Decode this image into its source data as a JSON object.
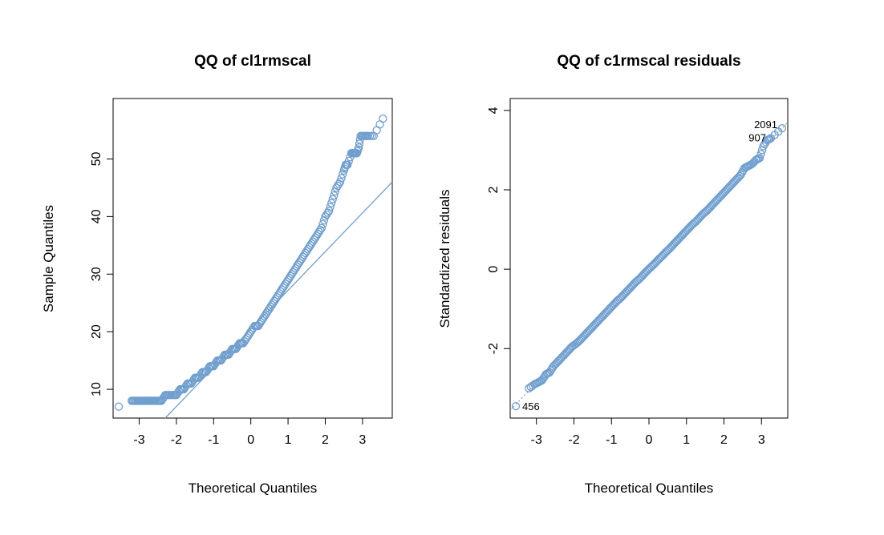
{
  "colors": {
    "points": "#6f9fcf",
    "line": "#6f9fcf",
    "axis": "#000000"
  },
  "chart_data": [
    {
      "type": "scatter",
      "title": "QQ of cl1rmscal",
      "xlabel": "Theoretical Quantiles",
      "ylabel": "Sample Quantiles",
      "xlim": [
        -3.7,
        3.8
      ],
      "ylim": [
        5,
        60.5
      ],
      "x_ticks": [
        -3,
        -2,
        -1,
        0,
        1,
        2,
        3
      ],
      "y_ticks": [
        10,
        20,
        30,
        40,
        50
      ],
      "x_tick_labels": [
        "-3",
        "-2",
        "-1",
        "0",
        "1",
        "2",
        "3"
      ],
      "y_tick_labels": [
        "10",
        "20",
        "30",
        "40",
        "50"
      ],
      "marker": "open-circle",
      "reference_line": {
        "x": [
          -2.3,
          3.8
        ],
        "y": [
          5,
          46
        ]
      },
      "points": {
        "x": [
          -3.55,
          -3.2,
          -3.1,
          -3.0,
          -2.9,
          -2.8,
          -2.7,
          -2.6,
          -2.5,
          -2.4,
          -2.3,
          -2.2,
          -2.1,
          -2.0,
          -1.9,
          -1.8,
          -1.7,
          -1.6,
          -1.5,
          -1.4,
          -1.3,
          -1.2,
          -1.1,
          -1.0,
          -0.9,
          -0.8,
          -0.7,
          -0.6,
          -0.5,
          -0.4,
          -0.3,
          -0.2,
          -0.1,
          0.0,
          0.1,
          0.2,
          0.3,
          0.4,
          0.5,
          0.6,
          0.7,
          0.8,
          0.9,
          1.0,
          1.1,
          1.2,
          1.3,
          1.4,
          1.5,
          1.6,
          1.7,
          1.8,
          1.9,
          2.0,
          2.1,
          2.2,
          2.3,
          2.4,
          2.5,
          2.55,
          2.6,
          2.7,
          2.75,
          2.8,
          2.85,
          2.9,
          2.95,
          3.05,
          3.15,
          3.3,
          3.55
        ],
        "y": [
          7,
          8,
          8,
          8,
          8,
          8,
          8,
          8,
          8,
          8,
          9,
          9,
          9,
          9,
          10,
          10,
          11,
          11,
          12,
          12,
          13,
          13,
          14,
          14,
          15,
          15,
          16,
          16,
          17,
          17,
          18,
          18,
          19,
          20,
          21,
          21,
          22,
          23,
          24,
          25,
          26,
          27,
          28,
          29,
          30,
          31,
          32,
          33,
          34,
          35,
          36,
          37,
          38,
          40,
          41,
          43,
          45,
          46,
          48,
          49,
          49,
          51,
          51,
          51,
          51,
          52,
          54,
          54,
          54,
          54,
          57
        ]
      }
    },
    {
      "type": "scatter",
      "title": "QQ of c1rmscal residuals",
      "xlabel": "Theoretical Quantiles",
      "ylabel": "Standardized residuals",
      "xlim": [
        -3.7,
        3.7
      ],
      "ylim": [
        -3.75,
        4.3
      ],
      "x_ticks": [
        -3,
        -2,
        -1,
        0,
        1,
        2,
        3
      ],
      "y_ticks": [
        -2,
        0,
        2,
        4
      ],
      "x_tick_labels": [
        "-3",
        "-2",
        "-1",
        "0",
        "1",
        "2",
        "3"
      ],
      "y_tick_labels": [
        "-2",
        "0",
        "2",
        "4"
      ],
      "marker": "open-circle",
      "reference_line": {
        "x": [
          -3.7,
          3.7
        ],
        "y": [
          -3.55,
          3.7
        ],
        "style": "dotted"
      },
      "points": {
        "x": [
          -3.55,
          -3.2,
          -3.05,
          -2.95,
          -2.85,
          -2.75,
          -2.65,
          -2.55,
          -2.45,
          -2.35,
          -2.25,
          -2.15,
          -2.05,
          -1.95,
          -1.85,
          -1.75,
          -1.65,
          -1.55,
          -1.45,
          -1.35,
          -1.25,
          -1.15,
          -1.05,
          -0.95,
          -0.85,
          -0.75,
          -0.65,
          -0.55,
          -0.45,
          -0.35,
          -0.25,
          -0.15,
          -0.05,
          0.05,
          0.15,
          0.25,
          0.35,
          0.45,
          0.55,
          0.65,
          0.75,
          0.85,
          0.95,
          1.05,
          1.15,
          1.25,
          1.35,
          1.45,
          1.55,
          1.65,
          1.75,
          1.85,
          1.95,
          2.05,
          2.15,
          2.25,
          2.35,
          2.45,
          2.55,
          2.65,
          2.75,
          2.85,
          2.95,
          3.05,
          3.15,
          3.25,
          3.55
        ],
        "y": [
          -3.45,
          -3.0,
          -2.9,
          -2.85,
          -2.8,
          -2.65,
          -2.6,
          -2.45,
          -2.35,
          -2.25,
          -2.15,
          -2.05,
          -1.95,
          -1.88,
          -1.8,
          -1.7,
          -1.6,
          -1.5,
          -1.4,
          -1.3,
          -1.2,
          -1.1,
          -1.0,
          -0.9,
          -0.8,
          -0.72,
          -0.62,
          -0.52,
          -0.42,
          -0.32,
          -0.24,
          -0.14,
          -0.04,
          0.05,
          0.14,
          0.24,
          0.33,
          0.43,
          0.52,
          0.62,
          0.72,
          0.82,
          0.92,
          1.02,
          1.12,
          1.2,
          1.3,
          1.4,
          1.48,
          1.58,
          1.68,
          1.78,
          1.88,
          1.98,
          2.08,
          2.18,
          2.28,
          2.38,
          2.55,
          2.6,
          2.65,
          2.75,
          2.8,
          3.1,
          3.25,
          3.3,
          3.55
        ]
      },
      "annotations": [
        {
          "text": "2091",
          "x": 3.55,
          "y": 3.55
        },
        {
          "text": "907",
          "x": 3.25,
          "y": 3.3
        },
        {
          "text": "456",
          "x": -3.55,
          "y": -3.45
        }
      ]
    }
  ]
}
